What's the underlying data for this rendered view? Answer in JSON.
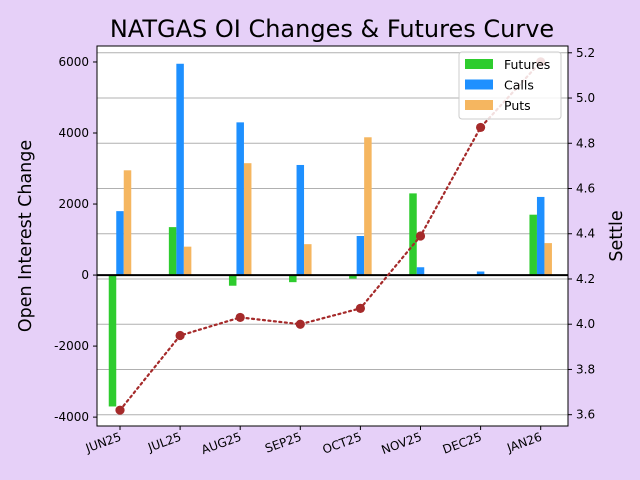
{
  "chart_data": {
    "type": "bar",
    "title": "NATGAS OI Changes & Futures Curve",
    "ylabel": "Open Interest Change",
    "y2label": "Settle",
    "categories": [
      "JUN25",
      "JUL25",
      "AUG25",
      "SEP25",
      "OCT25",
      "NOV25",
      "DEC25",
      "JAN26"
    ],
    "series": [
      {
        "name": "Futures",
        "color": "#2ecc2e",
        "values": [
          -3700,
          1350,
          -300,
          -200,
          -100,
          2300,
          0,
          1700
        ]
      },
      {
        "name": "Calls",
        "color": "#1e90ff",
        "values": [
          1800,
          5950,
          4300,
          3100,
          1100,
          220,
          100,
          2200
        ]
      },
      {
        "name": "Puts",
        "color": "#f5b660",
        "values": [
          2950,
          800,
          3150,
          870,
          3880,
          0,
          0,
          900
        ]
      }
    ],
    "settle": {
      "color": "#a52a2a",
      "style": "dotted",
      "values": [
        3.62,
        3.95,
        4.03,
        4.0,
        4.07,
        4.39,
        4.87,
        5.16
      ]
    },
    "ylim": [
      -4250,
      6450
    ],
    "yticks": [
      -4000,
      -2000,
      0,
      2000,
      4000,
      6000
    ],
    "y2lim": [
      3.55,
      5.23
    ],
    "y2ticks": [
      "3.6",
      "3.8",
      "4.0",
      "4.2",
      "4.4",
      "4.6",
      "4.8",
      "5.0",
      "5.2"
    ],
    "grid": "horizontal",
    "legend": "top-right"
  }
}
